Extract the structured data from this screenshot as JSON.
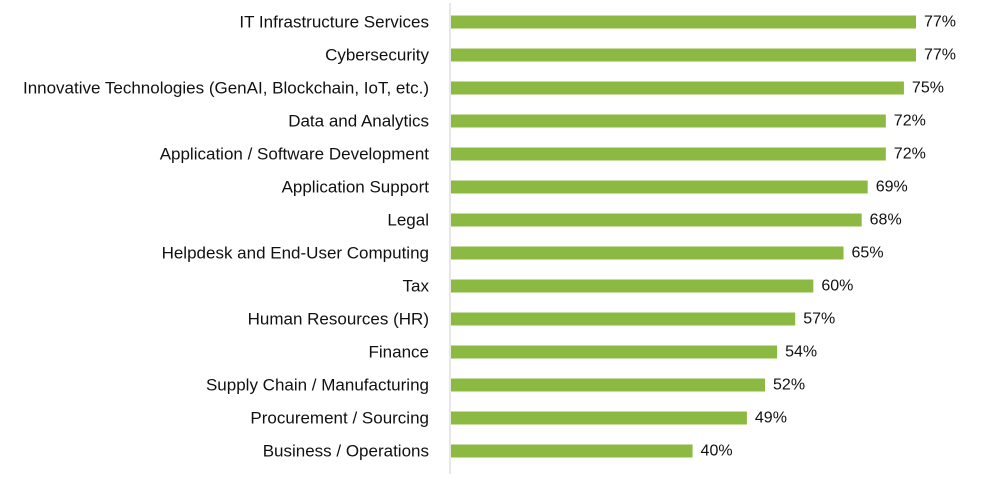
{
  "chart_data": {
    "type": "bar",
    "orientation": "horizontal",
    "title": "",
    "xlabel": "",
    "ylabel": "",
    "categories": [
      "IT Infrastructure Services",
      "Cybersecurity",
      "Innovative Technologies (GenAI, Blockchain, IoT, etc.)",
      "Data and Analytics",
      "Application / Software Development",
      "Application Support",
      "Legal",
      "Helpdesk and End-User Computing",
      "Tax",
      "Human Resources (HR)",
      "Finance",
      "Supply Chain / Manufacturing",
      "Procurement / Sourcing",
      "Business / Operations"
    ],
    "values": [
      77,
      77,
      75,
      72,
      72,
      69,
      68,
      65,
      60,
      57,
      54,
      52,
      49,
      40
    ],
    "value_labels": [
      "77%",
      "77%",
      "75%",
      "72%",
      "72%",
      "69%",
      "68%",
      "65%",
      "60%",
      "57%",
      "54%",
      "52%",
      "49%",
      "40%"
    ],
    "value_unit": "%",
    "xlim": [
      0,
      100
    ],
    "grid": false,
    "legend": "none",
    "bar_color": "#8cb942",
    "axis_color": "#cfcfcf",
    "label_color": "#111111"
  }
}
